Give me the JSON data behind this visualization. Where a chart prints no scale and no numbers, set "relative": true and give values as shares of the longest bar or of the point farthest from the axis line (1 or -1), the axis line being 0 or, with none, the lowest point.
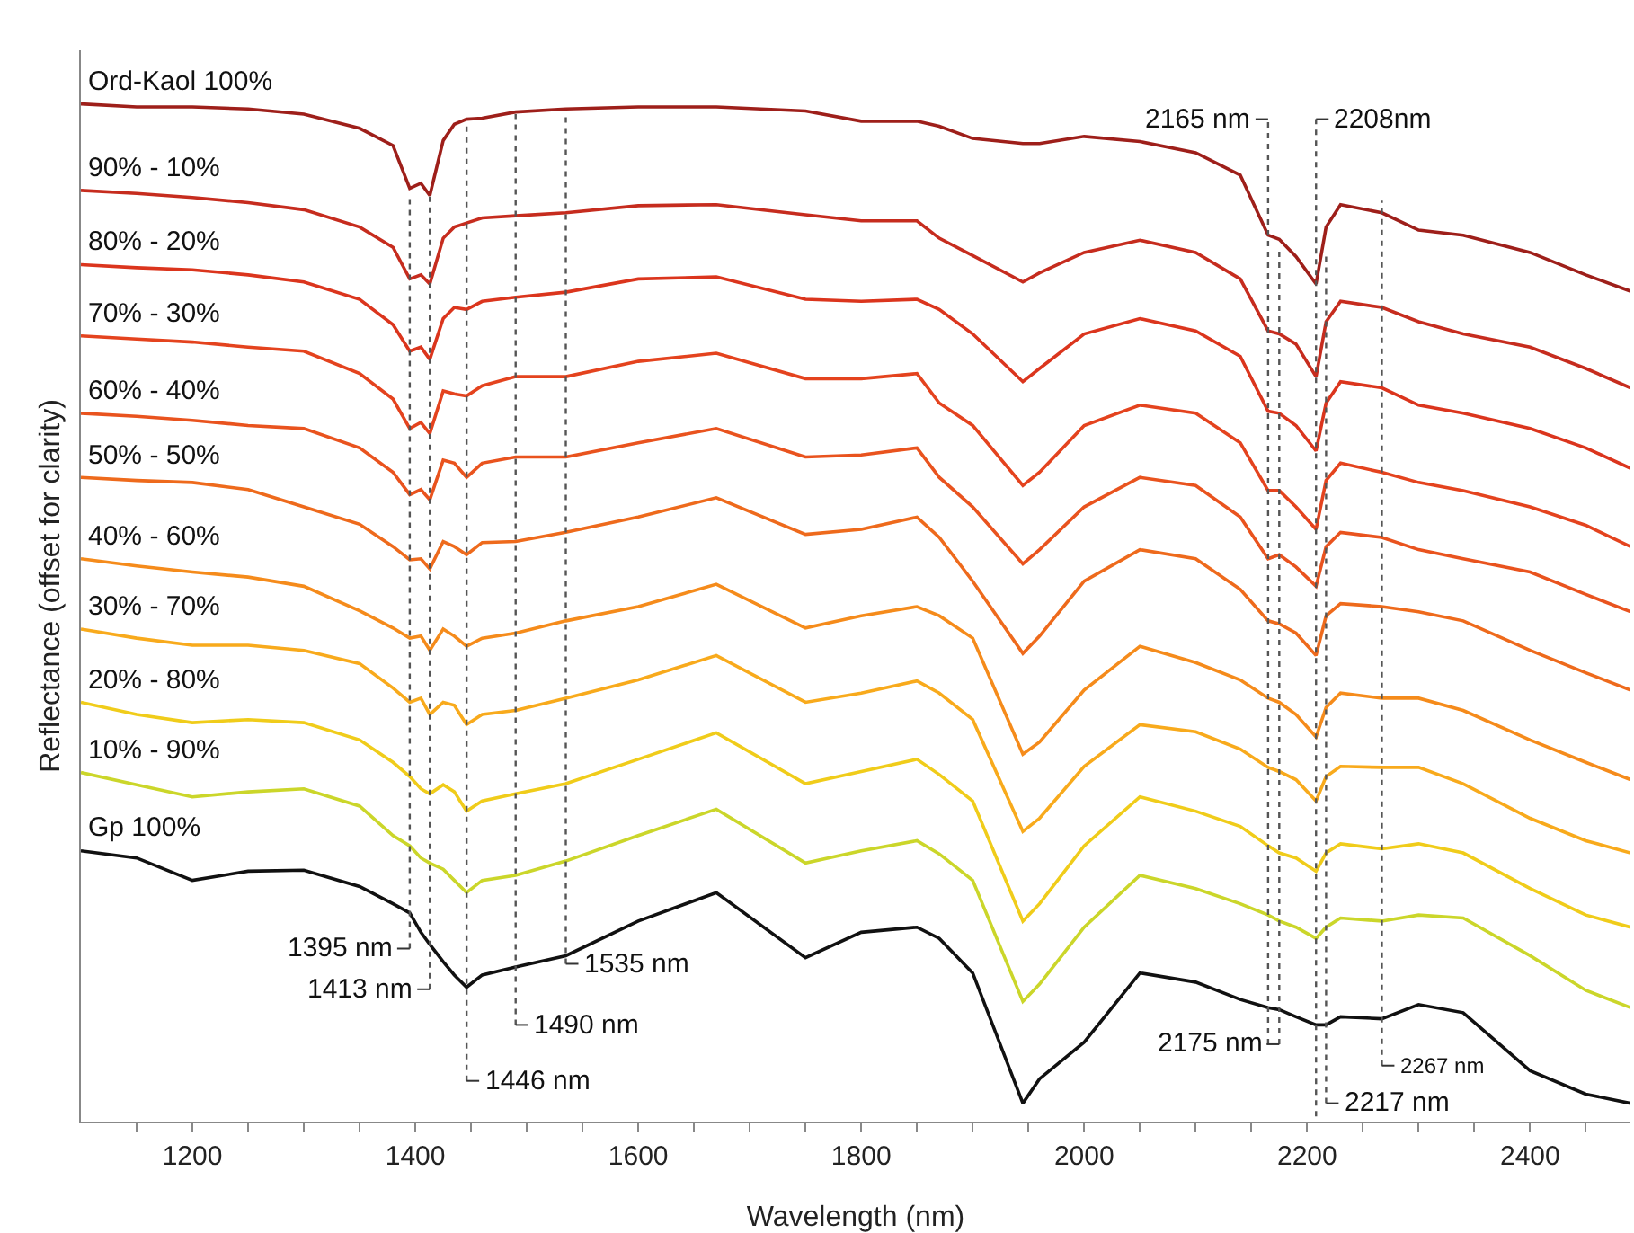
{
  "chart_data": {
    "type": "line",
    "relative": true,
    "xlabel": "Wavelength (nm)",
    "ylabel": "Reflectance (offset for clarity)",
    "x": [
      1100,
      1150,
      1200,
      1250,
      1300,
      1350,
      1380,
      1395,
      1405,
      1413,
      1425,
      1435,
      1446,
      1460,
      1490,
      1535,
      1600,
      1670,
      1750,
      1800,
      1850,
      1870,
      1900,
      1945,
      1960,
      2000,
      2050,
      2100,
      2140,
      2165,
      2175,
      2190,
      2208,
      2217,
      2230,
      2267,
      2300,
      2340,
      2400,
      2450,
      2490
    ],
    "xlim": [
      1100,
      2490
    ],
    "xticks": [
      {
        "value": 1150,
        "label": null
      },
      1200,
      {
        "value": 1250,
        "label": null
      },
      {
        "value": 1300,
        "label": null
      },
      {
        "value": 1350,
        "label": null
      },
      1400,
      {
        "value": 1450,
        "label": null
      },
      {
        "value": 1500,
        "label": null
      },
      {
        "value": 1550,
        "label": null
      },
      1600,
      {
        "value": 1650,
        "label": null
      },
      {
        "value": 1700,
        "label": null
      },
      {
        "value": 1750,
        "label": null
      },
      1800,
      {
        "value": 1850,
        "label": null
      },
      {
        "value": 1900,
        "label": null
      },
      {
        "value": 1950,
        "label": null
      },
      2000,
      {
        "value": 2050,
        "label": null
      },
      {
        "value": 2100,
        "label": null
      },
      {
        "value": 2150,
        "label": null
      },
      2200,
      {
        "value": 2250,
        "label": null
      },
      {
        "value": 2300,
        "label": null
      },
      {
        "value": 2350,
        "label": null
      },
      2400,
      {
        "value": 2450,
        "label": null
      }
    ],
    "grid": false,
    "legend": false,
    "line_style": "solid",
    "marker": "none",
    "series": [
      {
        "name": "Ord-Kaol 100%",
        "color": "#9e1f1a",
        "values": [
          1.0,
          0.997,
          0.997,
          0.995,
          0.99,
          0.976,
          0.959,
          0.917,
          0.922,
          0.91,
          0.964,
          0.98,
          0.985,
          0.986,
          0.992,
          0.995,
          0.997,
          0.997,
          0.993,
          0.983,
          0.983,
          0.978,
          0.966,
          0.961,
          0.961,
          0.968,
          0.963,
          0.952,
          0.93,
          0.871,
          0.867,
          0.85,
          0.823,
          0.879,
          0.901,
          0.893,
          0.876,
          0.871,
          0.854,
          0.832,
          0.816
        ]
      },
      {
        "name": "90% - 10%",
        "color": "#c62c1e",
        "values": [
          0.915,
          0.912,
          0.908,
          0.903,
          0.896,
          0.879,
          0.859,
          0.828,
          0.832,
          0.823,
          0.868,
          0.879,
          0.883,
          0.888,
          0.89,
          0.893,
          0.9,
          0.901,
          0.891,
          0.885,
          0.885,
          0.868,
          0.851,
          0.825,
          0.834,
          0.854,
          0.866,
          0.854,
          0.828,
          0.777,
          0.774,
          0.764,
          0.732,
          0.786,
          0.806,
          0.8,
          0.786,
          0.774,
          0.761,
          0.74,
          0.721
        ]
      },
      {
        "name": "80% - 20%",
        "color": "#db351d",
        "values": [
          0.842,
          0.839,
          0.837,
          0.832,
          0.825,
          0.808,
          0.783,
          0.757,
          0.761,
          0.749,
          0.789,
          0.8,
          0.798,
          0.806,
          0.81,
          0.815,
          0.828,
          0.83,
          0.808,
          0.806,
          0.808,
          0.798,
          0.774,
          0.727,
          0.74,
          0.774,
          0.789,
          0.777,
          0.752,
          0.698,
          0.696,
          0.684,
          0.659,
          0.706,
          0.727,
          0.721,
          0.704,
          0.696,
          0.681,
          0.662,
          0.642
        ]
      },
      {
        "name": "70% - 30%",
        "color": "#e4431e",
        "values": [
          0.772,
          0.769,
          0.766,
          0.761,
          0.757,
          0.735,
          0.71,
          0.681,
          0.687,
          0.676,
          0.718,
          0.715,
          0.713,
          0.723,
          0.732,
          0.732,
          0.747,
          0.755,
          0.73,
          0.73,
          0.735,
          0.706,
          0.684,
          0.625,
          0.638,
          0.684,
          0.704,
          0.696,
          0.667,
          0.62,
          0.62,
          0.604,
          0.582,
          0.63,
          0.647,
          0.638,
          0.628,
          0.62,
          0.604,
          0.586,
          0.565
        ]
      },
      {
        "name": "60% - 40%",
        "color": "#e9531e",
        "values": [
          0.696,
          0.693,
          0.689,
          0.684,
          0.681,
          0.662,
          0.638,
          0.616,
          0.621,
          0.611,
          0.65,
          0.647,
          0.633,
          0.647,
          0.653,
          0.653,
          0.667,
          0.681,
          0.653,
          0.655,
          0.662,
          0.633,
          0.604,
          0.548,
          0.562,
          0.604,
          0.633,
          0.625,
          0.594,
          0.553,
          0.557,
          0.545,
          0.526,
          0.565,
          0.579,
          0.574,
          0.562,
          0.553,
          0.54,
          0.518,
          0.501
        ]
      },
      {
        "name": "50% - 50%",
        "color": "#ee6a1c",
        "values": [
          0.633,
          0.63,
          0.628,
          0.621,
          0.604,
          0.587,
          0.565,
          0.552,
          0.553,
          0.543,
          0.57,
          0.565,
          0.557,
          0.569,
          0.57,
          0.579,
          0.594,
          0.613,
          0.577,
          0.582,
          0.594,
          0.574,
          0.531,
          0.46,
          0.477,
          0.531,
          0.562,
          0.553,
          0.523,
          0.492,
          0.489,
          0.48,
          0.458,
          0.497,
          0.509,
          0.506,
          0.501,
          0.492,
          0.463,
          0.441,
          0.424
        ]
      },
      {
        "name": "40% - 60%",
        "color": "#f58b1b",
        "values": [
          0.553,
          0.546,
          0.54,
          0.535,
          0.526,
          0.502,
          0.485,
          0.475,
          0.477,
          0.463,
          0.484,
          0.477,
          0.467,
          0.475,
          0.48,
          0.492,
          0.506,
          0.528,
          0.485,
          0.497,
          0.506,
          0.497,
          0.475,
          0.361,
          0.373,
          0.424,
          0.467,
          0.451,
          0.434,
          0.416,
          0.412,
          0.4,
          0.378,
          0.407,
          0.421,
          0.416,
          0.416,
          0.404,
          0.375,
          0.353,
          0.336
        ]
      },
      {
        "name": "30% - 70%",
        "color": "#f8aa1c",
        "values": [
          0.484,
          0.475,
          0.468,
          0.468,
          0.463,
          0.45,
          0.426,
          0.412,
          0.416,
          0.4,
          0.412,
          0.409,
          0.39,
          0.4,
          0.404,
          0.416,
          0.434,
          0.458,
          0.412,
          0.421,
          0.433,
          0.421,
          0.395,
          0.285,
          0.298,
          0.349,
          0.39,
          0.383,
          0.366,
          0.348,
          0.344,
          0.336,
          0.315,
          0.339,
          0.349,
          0.348,
          0.348,
          0.332,
          0.298,
          0.276,
          0.264
        ]
      },
      {
        "name": "20% - 80%",
        "color": "#f0cc1a",
        "values": [
          0.412,
          0.4,
          0.392,
          0.395,
          0.392,
          0.375,
          0.353,
          0.339,
          0.327,
          0.322,
          0.331,
          0.324,
          0.305,
          0.315,
          0.322,
          0.332,
          0.356,
          0.382,
          0.332,
          0.344,
          0.356,
          0.341,
          0.315,
          0.197,
          0.214,
          0.271,
          0.319,
          0.305,
          0.29,
          0.271,
          0.264,
          0.259,
          0.246,
          0.264,
          0.273,
          0.268,
          0.273,
          0.264,
          0.229,
          0.203,
          0.191
        ]
      },
      {
        "name": "10% - 90%",
        "color": "#cbd62a",
        "values": [
          0.343,
          0.331,
          0.319,
          0.324,
          0.327,
          0.31,
          0.281,
          0.271,
          0.259,
          0.254,
          0.248,
          0.237,
          0.225,
          0.237,
          0.242,
          0.256,
          0.281,
          0.307,
          0.254,
          0.266,
          0.276,
          0.263,
          0.237,
          0.118,
          0.135,
          0.191,
          0.242,
          0.229,
          0.214,
          0.203,
          0.197,
          0.191,
          0.18,
          0.191,
          0.2,
          0.197,
          0.203,
          0.2,
          0.163,
          0.129,
          0.112
        ]
      },
      {
        "name": "Gp 100%",
        "color": "#111111",
        "values": [
          0.266,
          0.259,
          0.237,
          0.246,
          0.247,
          0.231,
          0.214,
          0.205,
          0.186,
          0.174,
          0.157,
          0.144,
          0.132,
          0.144,
          0.152,
          0.163,
          0.197,
          0.225,
          0.161,
          0.186,
          0.191,
          0.18,
          0.146,
          0.018,
          0.042,
          0.078,
          0.146,
          0.137,
          0.12,
          0.112,
          0.11,
          0.103,
          0.095,
          0.095,
          0.103,
          0.101,
          0.115,
          0.107,
          0.05,
          0.027,
          0.018
        ]
      }
    ],
    "ref_lines": [
      {
        "axis": "x",
        "value": 1395,
        "label": "1395 nm",
        "color": "#555555",
        "line_style": "dotted"
      },
      {
        "axis": "x",
        "value": 1413,
        "label": "1413 nm",
        "color": "#555555",
        "line_style": "dotted"
      },
      {
        "axis": "x",
        "value": 1446,
        "label": "1446 nm",
        "color": "#555555",
        "line_style": "dotted"
      },
      {
        "axis": "x",
        "value": 1490,
        "label": "1490 nm",
        "color": "#555555",
        "line_style": "dotted"
      },
      {
        "axis": "x",
        "value": 1535,
        "label": "1535 nm",
        "color": "#555555",
        "line_style": "dotted"
      },
      {
        "axis": "x",
        "value": 2165,
        "label": "2165 nm",
        "color": "#555555",
        "line_style": "dotted"
      },
      {
        "axis": "x",
        "value": 2175,
        "label": "2175 nm",
        "color": "#555555",
        "line_style": "dotted"
      },
      {
        "axis": "x",
        "value": 2208,
        "label": "2208nm",
        "color": "#555555",
        "line_style": "dotted"
      },
      {
        "axis": "x",
        "value": 2217,
        "label": "2217 nm",
        "color": "#555555",
        "line_style": "dotted"
      },
      {
        "axis": "x",
        "value": 2267,
        "label": "2267 nm",
        "color": "#555555",
        "line_style": "dotted"
      }
    ]
  }
}
